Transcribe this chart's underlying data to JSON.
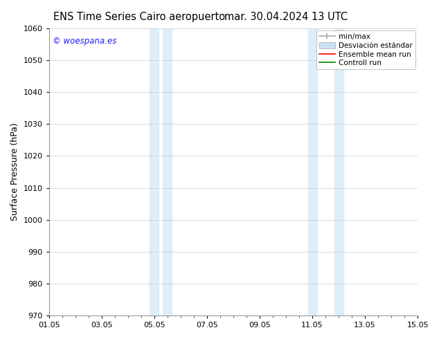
{
  "title_left": "ENS Time Series Cairo aeropuerto",
  "title_right": "mar. 30.04.2024 13 UTC",
  "ylabel": "Surface Pressure (hPa)",
  "xlabel_ticks": [
    "01.05",
    "03.05",
    "05.05",
    "07.05",
    "09.05",
    "11.05",
    "13.05",
    "15.05"
  ],
  "x_tick_positions": [
    0,
    2,
    4,
    6,
    8,
    10,
    12,
    14
  ],
  "xlim": [
    0,
    14
  ],
  "ylim": [
    970,
    1060
  ],
  "yticks": [
    970,
    980,
    990,
    1000,
    1010,
    1020,
    1030,
    1040,
    1050,
    1060
  ],
  "shaded_regions": [
    {
      "x_start": 3.83,
      "x_end": 4.17,
      "color": "#ddeef8"
    },
    {
      "x_start": 4.33,
      "x_end": 4.67,
      "color": "#ddeef8"
    },
    {
      "x_start": 9.83,
      "x_end": 10.17,
      "color": "#ddeef8"
    },
    {
      "x_start": 10.83,
      "x_end": 11.17,
      "color": "#ddeef8"
    }
  ],
  "watermark_text": "© woespana.es",
  "watermark_color": "#1a1aff",
  "legend_minmax_color": "#aaaaaa",
  "legend_std_color": "#cce0f0",
  "legend_ensemble_color": "red",
  "legend_control_color": "green",
  "legend_label_minmax": "min/max",
  "legend_label_std": "Desviación estándar",
  "legend_label_ensemble": "Ensemble mean run",
  "legend_label_control": "Controll run",
  "background_color": "#ffffff",
  "grid_color": "#cccccc",
  "tick_label_fontsize": 8,
  "title_fontsize": 10.5,
  "ylabel_fontsize": 9,
  "legend_fontsize": 7.5
}
